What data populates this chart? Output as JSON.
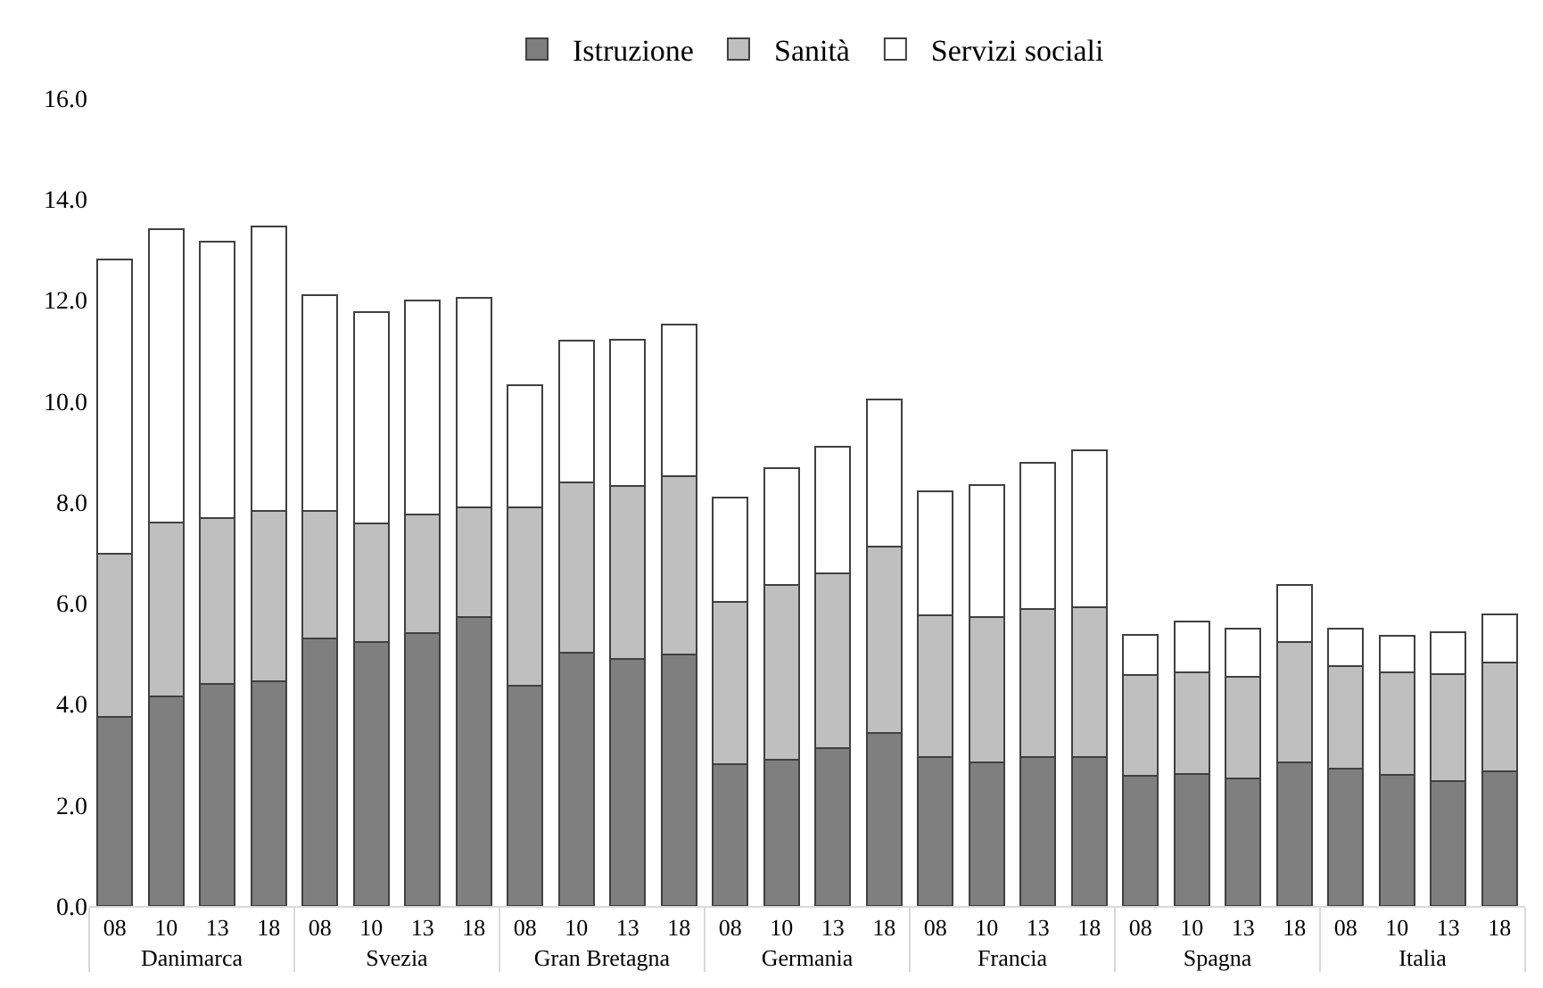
{
  "chart_data": {
    "type": "bar",
    "stacked": true,
    "categories": [
      "08",
      "10",
      "13",
      "18",
      "08",
      "10",
      "13",
      "18",
      "08",
      "10",
      "13",
      "18",
      "08",
      "10",
      "13",
      "18",
      "08",
      "10",
      "13",
      "18",
      "08",
      "10",
      "13",
      "18",
      "08",
      "10",
      "13",
      "18"
    ],
    "annotations": [
      "Danimarca",
      "Svezia",
      "Gran Bretagna",
      "Germania",
      "Francia",
      "Spagna",
      "Italia"
    ],
    "series": [
      {
        "name": "Istruzione",
        "color": "#7f7f7f",
        "values": [
          3.75,
          4.15,
          4.4,
          4.45,
          5.3,
          5.22,
          5.4,
          5.72,
          4.37,
          5.02,
          4.9,
          4.98,
          2.8,
          2.9,
          3.12,
          3.42,
          2.95,
          2.85,
          2.95,
          2.95,
          2.57,
          2.62,
          2.53,
          2.85,
          2.72,
          2.6,
          2.48,
          2.67
        ]
      },
      {
        "name": "Sanità",
        "color": "#bfbfbf",
        "values": [
          3.22,
          3.45,
          3.28,
          3.38,
          2.52,
          2.36,
          2.35,
          2.18,
          3.53,
          3.36,
          3.42,
          3.54,
          3.23,
          3.45,
          3.46,
          3.7,
          2.8,
          2.87,
          2.93,
          2.97,
          2.0,
          2.01,
          2.0,
          2.37,
          2.03,
          2.02,
          2.12,
          2.16
        ]
      },
      {
        "name": "Servizi sociali",
        "color": "#ffffff",
        "values": [
          5.83,
          5.8,
          5.47,
          5.62,
          4.28,
          4.19,
          4.25,
          4.15,
          2.42,
          2.82,
          2.9,
          3.0,
          2.05,
          2.32,
          2.52,
          2.91,
          2.47,
          2.61,
          2.89,
          3.11,
          0.8,
          1.0,
          0.97,
          1.13,
          0.75,
          0.73,
          0.82,
          0.95
        ]
      }
    ],
    "ylim": [
      0,
      16
    ],
    "yticks": [
      {
        "value": 0,
        "label": "0.0"
      },
      {
        "value": 2,
        "label": "2.0"
      },
      {
        "value": 4,
        "label": "4.0"
      },
      {
        "value": 6,
        "label": "6.0"
      },
      {
        "value": 8,
        "label": "8.0"
      },
      {
        "value": 10,
        "label": "10.0"
      },
      {
        "value": 12,
        "label": "12.0"
      },
      {
        "value": 14,
        "label": "14.0"
      },
      {
        "value": 16,
        "label": "16.0"
      }
    ],
    "legend": "top"
  }
}
